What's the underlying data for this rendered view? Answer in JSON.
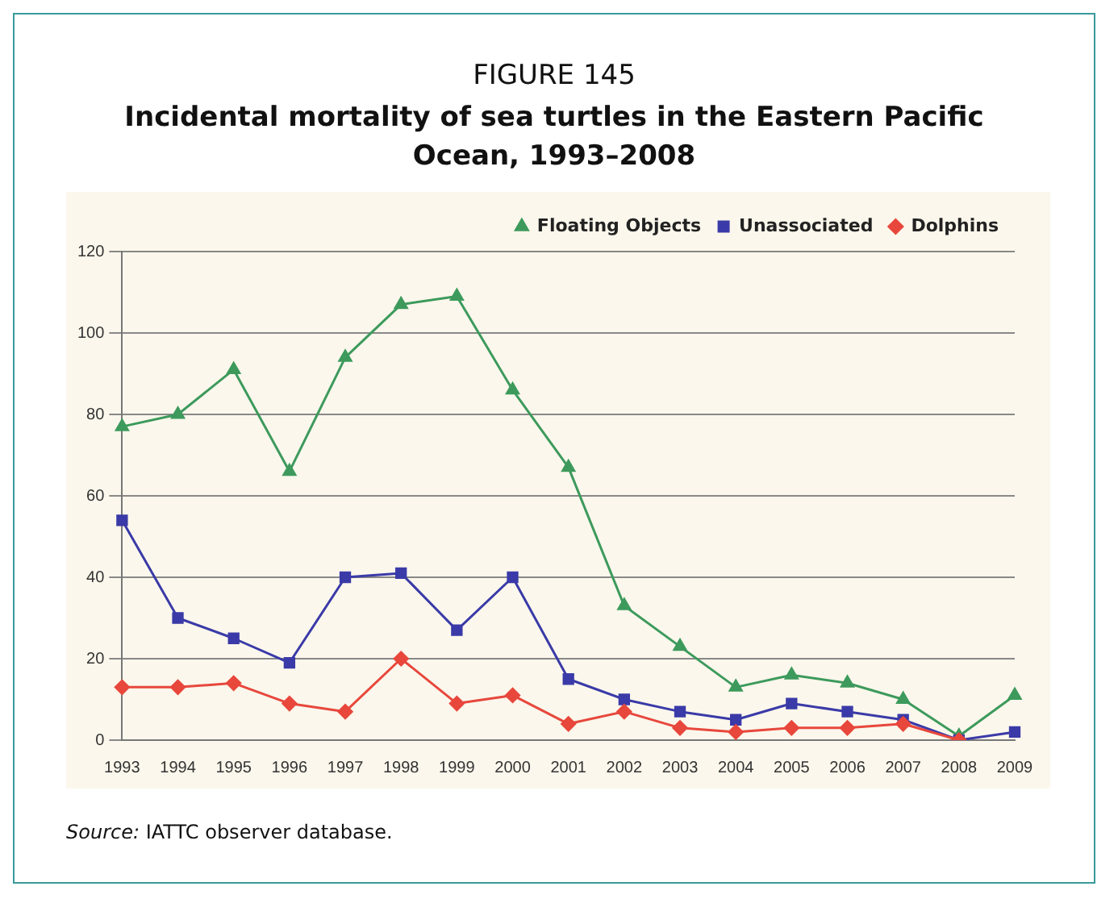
{
  "chart_data": {
    "type": "line",
    "title": "FIGURE 145",
    "subtitle": "Incidental mortality of sea turtles in the Eastern Pacific Ocean, 1993–2008",
    "categories": [
      "1993",
      "1994",
      "1995",
      "1996",
      "1997",
      "1998",
      "1999",
      "2000",
      "2001",
      "2002",
      "2003",
      "2004",
      "2005",
      "2006",
      "2007",
      "2008",
      "2009"
    ],
    "series": [
      {
        "name": "Floating Objects",
        "color": "#3d9a5c",
        "marker": "triangle",
        "values": [
          77,
          80,
          91,
          66,
          94,
          107,
          109,
          86,
          67,
          33,
          23,
          13,
          16,
          14,
          10,
          1,
          11
        ]
      },
      {
        "name": "Unassociated",
        "color": "#3a3aa8",
        "marker": "square",
        "values": [
          54,
          30,
          25,
          19,
          40,
          41,
          27,
          40,
          15,
          10,
          7,
          5,
          9,
          7,
          5,
          0,
          2
        ]
      },
      {
        "name": "Dolphins",
        "color": "#e8473c",
        "marker": "diamond",
        "values": [
          13,
          13,
          14,
          9,
          7,
          20,
          9,
          11,
          4,
          7,
          3,
          2,
          3,
          3,
          4,
          0,
          null
        ]
      }
    ],
    "ylim": [
      0,
      120
    ],
    "yticks": [
      0,
      20,
      40,
      60,
      80,
      100,
      120
    ],
    "grid": "y",
    "legend": "top right",
    "annotations": [
      "Source: IATTC observer database."
    ]
  }
}
